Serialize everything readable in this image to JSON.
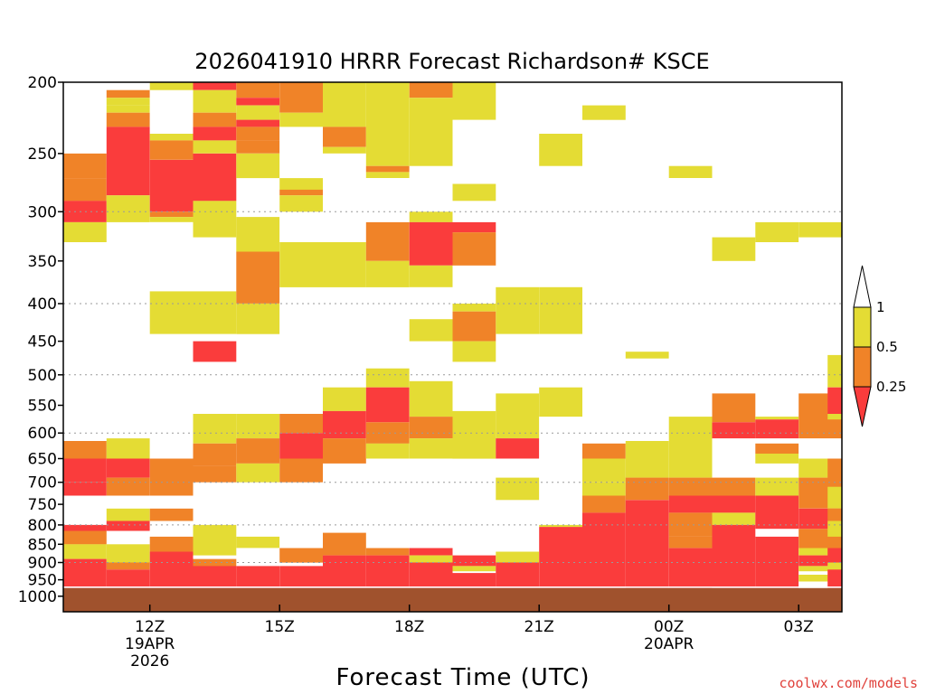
{
  "chart_data": {
    "type": "heatmap",
    "title": "2026041910 HRRR Forecast Richardson# KSCE",
    "xlabel": "Forecast Time (UTC)",
    "ylabel": "",
    "credit": "coolwx.com/models",
    "x_range_hours": [
      10,
      28
    ],
    "x_ticks": [
      {
        "hour": 12,
        "lines": [
          "12Z",
          "19APR",
          "2026"
        ]
      },
      {
        "hour": 15,
        "lines": [
          "15Z"
        ]
      },
      {
        "hour": 18,
        "lines": [
          "18Z"
        ]
      },
      {
        "hour": 21,
        "lines": [
          "21Z"
        ]
      },
      {
        "hour": 24,
        "lines": [
          "00Z",
          "20APR"
        ]
      },
      {
        "hour": 27,
        "lines": [
          "03Z"
        ]
      }
    ],
    "y_range_hpa": [
      200,
      1050
    ],
    "y_ticks": [
      "200",
      "250",
      "300",
      "350",
      "400",
      "450",
      "500",
      "550",
      "600",
      "650",
      "700",
      "750",
      "800",
      "850",
      "900",
      "950",
      "1000"
    ],
    "y_scale": "log",
    "grid_levels_hpa": [
      300,
      400,
      500,
      600,
      700,
      800,
      900
    ],
    "surface_pressure_hpa": 975,
    "colorbar": {
      "labels": [
        "1",
        "0.5",
        "0.25"
      ],
      "bins": [
        {
          "range": "0.5-1",
          "color": "#e4dc34"
        },
        {
          "range": "0.25-0.5",
          "color": "#f08328"
        },
        {
          "range": "<0.25",
          "color": "#fa3c3c"
        }
      ]
    },
    "colors": {
      "Y": "#e4dc34",
      "O": "#f08328",
      "R": "#fa3c3c",
      "ground": "#a0522d"
    },
    "columns": [
      {
        "hour": 10,
        "cells": [
          [
            250,
            270,
            "O"
          ],
          [
            270,
            290,
            "O"
          ],
          [
            290,
            310,
            "R"
          ],
          [
            310,
            330,
            "Y"
          ],
          [
            615,
            650,
            "O"
          ],
          [
            650,
            700,
            "R"
          ],
          [
            700,
            730,
            "R"
          ],
          [
            800,
            815,
            "R"
          ],
          [
            815,
            850,
            "O"
          ],
          [
            850,
            890,
            "Y"
          ],
          [
            890,
            910,
            "R"
          ],
          [
            910,
            975,
            "R"
          ]
        ]
      },
      {
        "hour": 11,
        "cells": [
          [
            205,
            210,
            "O"
          ],
          [
            210,
            215,
            "Y"
          ],
          [
            215,
            220,
            "Y"
          ],
          [
            220,
            230,
            "O"
          ],
          [
            230,
            285,
            "R"
          ],
          [
            285,
            310,
            "Y"
          ],
          [
            610,
            650,
            "Y"
          ],
          [
            650,
            690,
            "R"
          ],
          [
            690,
            730,
            "O"
          ],
          [
            760,
            790,
            "Y"
          ],
          [
            790,
            815,
            "R"
          ],
          [
            850,
            900,
            "Y"
          ],
          [
            900,
            920,
            "O"
          ],
          [
            920,
            975,
            "R"
          ]
        ]
      },
      {
        "hour": 12,
        "cells": [
          [
            200,
            205,
            "Y"
          ],
          [
            235,
            240,
            "Y"
          ],
          [
            240,
            255,
            "O"
          ],
          [
            255,
            300,
            "R"
          ],
          [
            300,
            305,
            "O"
          ],
          [
            305,
            310,
            "Y"
          ],
          [
            385,
            440,
            "Y"
          ],
          [
            650,
            730,
            "O"
          ],
          [
            760,
            790,
            "O"
          ],
          [
            830,
            870,
            "O"
          ],
          [
            870,
            975,
            "R"
          ]
        ]
      },
      {
        "hour": 13,
        "cells": [
          [
            200,
            205,
            "R"
          ],
          [
            205,
            220,
            "Y"
          ],
          [
            220,
            230,
            "O"
          ],
          [
            230,
            240,
            "R"
          ],
          [
            240,
            250,
            "Y"
          ],
          [
            250,
            290,
            "R"
          ],
          [
            290,
            325,
            "Y"
          ],
          [
            385,
            440,
            "Y"
          ],
          [
            450,
            480,
            "R"
          ],
          [
            565,
            620,
            "Y"
          ],
          [
            620,
            665,
            "O"
          ],
          [
            665,
            700,
            "O"
          ],
          [
            800,
            880,
            "Y"
          ],
          [
            890,
            910,
            "O"
          ],
          [
            910,
            975,
            "R"
          ]
        ]
      },
      {
        "hour": 14,
        "cells": [
          [
            200,
            210,
            "O"
          ],
          [
            210,
            215,
            "R"
          ],
          [
            215,
            225,
            "Y"
          ],
          [
            225,
            230,
            "R"
          ],
          [
            230,
            240,
            "O"
          ],
          [
            240,
            250,
            "O"
          ],
          [
            250,
            270,
            "Y"
          ],
          [
            305,
            340,
            "Y"
          ],
          [
            340,
            400,
            "O"
          ],
          [
            400,
            440,
            "Y"
          ],
          [
            565,
            610,
            "Y"
          ],
          [
            610,
            660,
            "O"
          ],
          [
            660,
            700,
            "Y"
          ],
          [
            830,
            860,
            "Y"
          ],
          [
            910,
            975,
            "R"
          ]
        ]
      },
      {
        "hour": 15,
        "cells": [
          [
            200,
            220,
            "O"
          ],
          [
            220,
            230,
            "Y"
          ],
          [
            270,
            280,
            "Y"
          ],
          [
            280,
            285,
            "O"
          ],
          [
            285,
            300,
            "Y"
          ],
          [
            330,
            380,
            "Y"
          ],
          [
            565,
            600,
            "O"
          ],
          [
            600,
            650,
            "R"
          ],
          [
            650,
            700,
            "O"
          ],
          [
            860,
            900,
            "O"
          ],
          [
            910,
            975,
            "R"
          ]
        ]
      },
      {
        "hour": 16,
        "cells": [
          [
            200,
            230,
            "Y"
          ],
          [
            230,
            245,
            "O"
          ],
          [
            245,
            250,
            "Y"
          ],
          [
            330,
            380,
            "Y"
          ],
          [
            520,
            560,
            "Y"
          ],
          [
            560,
            610,
            "R"
          ],
          [
            610,
            660,
            "O"
          ],
          [
            820,
            880,
            "O"
          ],
          [
            880,
            975,
            "R"
          ]
        ]
      },
      {
        "hour": 17,
        "cells": [
          [
            200,
            260,
            "Y"
          ],
          [
            260,
            265,
            "O"
          ],
          [
            265,
            270,
            "Y"
          ],
          [
            310,
            350,
            "O"
          ],
          [
            350,
            380,
            "Y"
          ],
          [
            490,
            520,
            "Y"
          ],
          [
            520,
            580,
            "R"
          ],
          [
            580,
            620,
            "O"
          ],
          [
            620,
            650,
            "Y"
          ],
          [
            860,
            880,
            "O"
          ],
          [
            880,
            975,
            "R"
          ]
        ]
      },
      {
        "hour": 18,
        "cells": [
          [
            200,
            210,
            "O"
          ],
          [
            210,
            260,
            "Y"
          ],
          [
            300,
            310,
            "Y"
          ],
          [
            310,
            355,
            "R"
          ],
          [
            355,
            380,
            "Y"
          ],
          [
            420,
            450,
            "Y"
          ],
          [
            510,
            570,
            "Y"
          ],
          [
            570,
            610,
            "O"
          ],
          [
            610,
            650,
            "Y"
          ],
          [
            860,
            880,
            "R"
          ],
          [
            880,
            900,
            "Y"
          ],
          [
            900,
            975,
            "R"
          ]
        ]
      },
      {
        "hour": 19,
        "cells": [
          [
            200,
            225,
            "Y"
          ],
          [
            275,
            290,
            "Y"
          ],
          [
            310,
            320,
            "R"
          ],
          [
            320,
            355,
            "O"
          ],
          [
            400,
            410,
            "Y"
          ],
          [
            410,
            450,
            "O"
          ],
          [
            450,
            480,
            "Y"
          ],
          [
            560,
            650,
            "Y"
          ],
          [
            880,
            910,
            "R"
          ],
          [
            910,
            925,
            "Y"
          ],
          [
            930,
            975,
            "R"
          ]
        ]
      },
      {
        "hour": 20,
        "cells": [
          [
            380,
            440,
            "Y"
          ],
          [
            530,
            610,
            "Y"
          ],
          [
            610,
            650,
            "R"
          ],
          [
            690,
            740,
            "Y"
          ],
          [
            870,
            900,
            "Y"
          ],
          [
            900,
            975,
            "R"
          ]
        ]
      },
      {
        "hour": 21,
        "cells": [
          [
            235,
            260,
            "Y"
          ],
          [
            380,
            440,
            "Y"
          ],
          [
            520,
            570,
            "Y"
          ],
          [
            800,
            805,
            "Y"
          ],
          [
            805,
            975,
            "R"
          ]
        ]
      },
      {
        "hour": 22,
        "cells": [
          [
            215,
            225,
            "Y"
          ],
          [
            620,
            650,
            "O"
          ],
          [
            650,
            700,
            "Y"
          ],
          [
            700,
            730,
            "Y"
          ],
          [
            730,
            770,
            "O"
          ],
          [
            770,
            975,
            "R"
          ]
        ]
      },
      {
        "hour": 23,
        "cells": [
          [
            465,
            475,
            "Y"
          ],
          [
            615,
            690,
            "Y"
          ],
          [
            690,
            740,
            "O"
          ],
          [
            740,
            975,
            "R"
          ]
        ]
      },
      {
        "hour": 24,
        "cells": [
          [
            260,
            270,
            "Y"
          ],
          [
            570,
            690,
            "Y"
          ],
          [
            690,
            730,
            "O"
          ],
          [
            730,
            770,
            "R"
          ],
          [
            770,
            830,
            "O"
          ],
          [
            830,
            860,
            "O"
          ],
          [
            860,
            975,
            "R"
          ]
        ]
      },
      {
        "hour": 25,
        "cells": [
          [
            325,
            350,
            "Y"
          ],
          [
            530,
            580,
            "O"
          ],
          [
            580,
            610,
            "R"
          ],
          [
            690,
            730,
            "O"
          ],
          [
            730,
            770,
            "R"
          ],
          [
            770,
            800,
            "Y"
          ],
          [
            800,
            975,
            "R"
          ]
        ]
      },
      {
        "hour": 26,
        "cells": [
          [
            310,
            330,
            "Y"
          ],
          [
            570,
            575,
            "Y"
          ],
          [
            575,
            610,
            "R"
          ],
          [
            620,
            640,
            "O"
          ],
          [
            640,
            660,
            "Y"
          ],
          [
            690,
            730,
            "Y"
          ],
          [
            730,
            810,
            "R"
          ],
          [
            830,
            975,
            "R"
          ]
        ]
      },
      {
        "hour": 27,
        "cells": [
          [
            310,
            325,
            "Y"
          ],
          [
            530,
            610,
            "O"
          ],
          [
            650,
            690,
            "Y"
          ],
          [
            690,
            760,
            "O"
          ],
          [
            760,
            810,
            "R"
          ],
          [
            810,
            860,
            "O"
          ],
          [
            860,
            880,
            "Y"
          ],
          [
            880,
            910,
            "R"
          ],
          [
            910,
            925,
            "Y"
          ],
          [
            935,
            955,
            "Y"
          ]
        ]
      },
      {
        "hour": 27.67,
        "cells": [
          [
            470,
            520,
            "Y"
          ],
          [
            520,
            565,
            "R"
          ],
          [
            565,
            575,
            "Y"
          ],
          [
            650,
            710,
            "O"
          ],
          [
            710,
            760,
            "Y"
          ],
          [
            760,
            790,
            "O"
          ],
          [
            790,
            830,
            "Y"
          ],
          [
            830,
            860,
            "O"
          ],
          [
            860,
            890,
            "R"
          ],
          [
            900,
            920,
            "Y"
          ],
          [
            920,
            975,
            "R"
          ]
        ]
      }
    ]
  }
}
